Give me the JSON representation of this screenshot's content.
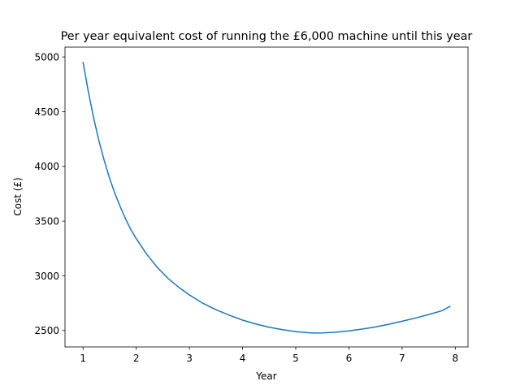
{
  "chart_data": {
    "type": "line",
    "title": "Per year equivalent cost of running the £6,000 machine until this year",
    "xlabel": "Year",
    "ylabel": "Cost (£)",
    "xlim": [
      0.66,
      8.24
    ],
    "ylim": [
      2350,
      5090
    ],
    "xticks": [
      1,
      2,
      3,
      4,
      5,
      6,
      7,
      8
    ],
    "yticks": [
      2500,
      3000,
      3500,
      4000,
      4500,
      5000
    ],
    "grid": false,
    "legend": "none",
    "colors": {
      "series": "#1f77b4"
    },
    "series": [
      {
        "x": [
          1.0,
          1.1,
          1.2,
          1.3,
          1.4,
          1.5,
          1.6,
          1.7,
          1.8,
          1.9,
          2.0,
          2.2,
          2.4,
          2.6,
          2.8,
          3.0,
          3.25,
          3.5,
          3.75,
          4.0,
          4.25,
          4.5,
          4.75,
          5.0,
          5.25,
          5.35,
          5.5,
          5.75,
          6.0,
          6.25,
          6.5,
          6.75,
          7.0,
          7.25,
          7.5,
          7.75,
          7.9
        ],
        "y": [
          4950,
          4680,
          4440,
          4230,
          4050,
          3890,
          3750,
          3630,
          3520,
          3420,
          3340,
          3195,
          3075,
          2975,
          2895,
          2825,
          2750,
          2690,
          2640,
          2595,
          2560,
          2530,
          2508,
          2490,
          2479,
          2477,
          2478,
          2485,
          2497,
          2513,
          2533,
          2557,
          2585,
          2614,
          2646,
          2681,
          2720
        ]
      }
    ]
  }
}
